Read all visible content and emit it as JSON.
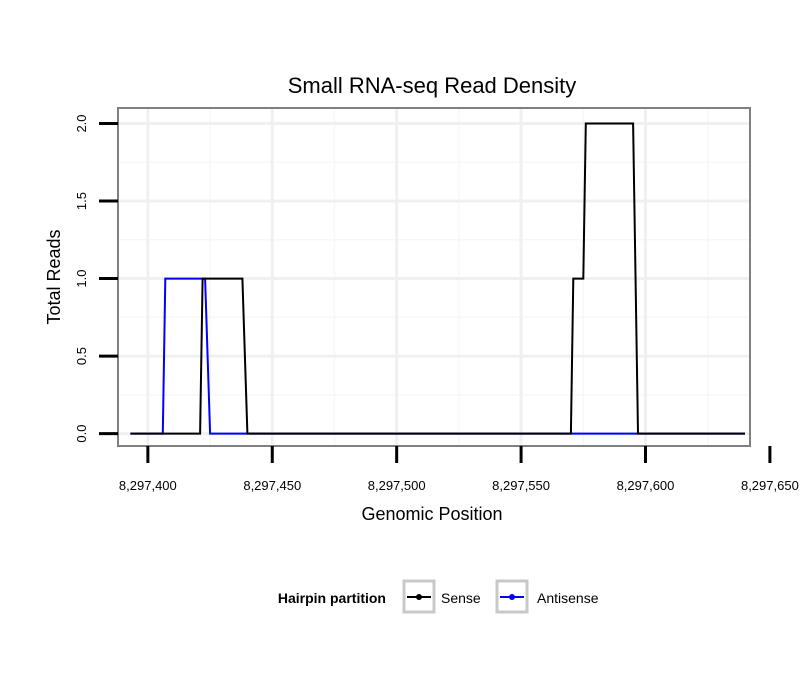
{
  "chart_data": {
    "type": "line",
    "title": "Small RNA-seq Read Density",
    "xlabel": "Genomic Position",
    "ylabel": "Total Reads",
    "xlim": [
      8297388,
      8297642
    ],
    "ylim": [
      -0.08,
      2.1
    ],
    "x_ticks": [
      8297400,
      8297450,
      8297500,
      8297550,
      8297600,
      8297650
    ],
    "x_tick_labels": [
      "8,297,400",
      "8,297,450",
      "8,297,500",
      "8,297,550",
      "8,297,600",
      "8,297,650"
    ],
    "y_ticks": [
      0,
      0.5,
      1,
      1.5,
      2
    ],
    "y_tick_labels": [
      "0.0",
      "0.5",
      "1.0",
      "1.5",
      "2.0"
    ],
    "grid": true,
    "legend": {
      "title": "Hairpin partition",
      "position": "bottom",
      "entries": [
        "Sense",
        "Antisense"
      ]
    },
    "series": [
      {
        "name": "Sense",
        "color": "#000000",
        "x": [
          8297393,
          8297421,
          8297422,
          8297438,
          8297440,
          8297570,
          8297571,
          8297575,
          8297576,
          8297595,
          8297597,
          8297640
        ],
        "y": [
          0,
          0,
          1,
          1,
          0,
          0,
          1,
          1,
          2,
          2,
          0,
          0
        ]
      },
      {
        "name": "Antisense",
        "color": "#0000ff",
        "x": [
          8297393,
          8297406,
          8297407,
          8297423,
          8297425,
          8297640
        ],
        "y": [
          0,
          0,
          1,
          1,
          0,
          0
        ]
      }
    ]
  }
}
